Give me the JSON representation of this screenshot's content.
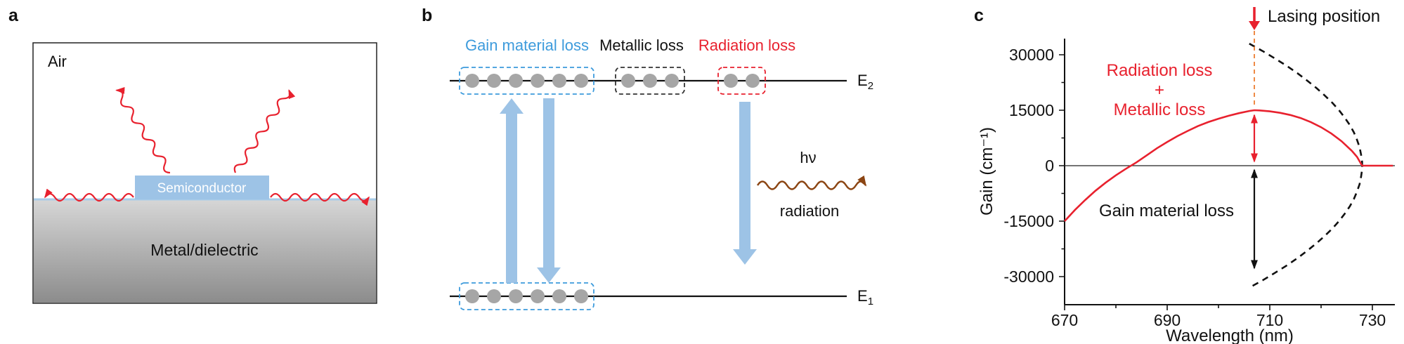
{
  "figure": {
    "panel_a": {
      "label": "a",
      "air_label": "Air",
      "semiconductor_label": "Semiconductor",
      "metal_label": "Metal/dielectric"
    },
    "panel_b": {
      "label": "b",
      "gain_material_loss_label": "Gain material loss",
      "metallic_loss_label": "Metallic loss",
      "radiation_loss_label": "Radiation loss",
      "level_base": "E",
      "upper_level_sub": "2",
      "lower_level_sub": "1",
      "photon_label": "hν",
      "radiation_label": "radiation"
    },
    "panel_c": {
      "label": "c",
      "lasing_position_label": "Lasing position",
      "radiation_loss_line": "Radiation loss",
      "plus": "+",
      "metallic_loss_line": "Metallic loss",
      "gain_material_loss_label": "Gain material loss",
      "ylabel": "Gain (cm⁻¹)",
      "xlabel": "Wavelength (nm)",
      "yticks": [
        "30000",
        "15000",
        "0",
        "-15000",
        "-30000"
      ],
      "xticks": [
        "670",
        "690",
        "710",
        "730"
      ]
    }
  },
  "colors": {
    "red": "#E8212E",
    "light_blue_arrow": "#9DC3E6",
    "label_blue": "#3D9BDC",
    "electron_gray": "#A6A6A6",
    "photon_brown": "#8B4513",
    "lasing_guide_orange": "#ED7D31",
    "metal_gradient_top": "#D6D6D6",
    "metal_gradient_bottom": "#8C8C8C"
  },
  "chart_data": {
    "type": "line",
    "title": "",
    "xlabel": "Wavelength (nm)",
    "ylabel": "Gain (cm⁻¹)",
    "xlim": [
      670,
      735
    ],
    "ylim": [
      -34000,
      34000
    ],
    "xticks": [
      670,
      690,
      710,
      730
    ],
    "yticks": [
      -30000,
      -15000,
      0,
      15000,
      30000
    ],
    "grid": false,
    "legend": "none",
    "series": [
      {
        "name": "cavity loss boundary (black dashed)",
        "style": "dashed",
        "color": "#111111",
        "points": [
          [
            706.0,
            33000
          ],
          [
            708.6,
            31000
          ],
          [
            711.0,
            29000
          ],
          [
            713.3,
            27000
          ],
          [
            715.4,
            25000
          ],
          [
            717.3,
            23000
          ],
          [
            719.1,
            21000
          ],
          [
            720.7,
            19000
          ],
          [
            722.2,
            17000
          ],
          [
            723.5,
            15000
          ],
          [
            724.6,
            13000
          ],
          [
            725.6,
            11000
          ],
          [
            726.4,
            9000
          ],
          [
            727.0,
            7000
          ],
          [
            727.5,
            5000
          ],
          [
            727.8,
            3000
          ],
          [
            728.0,
            1000
          ],
          [
            728.0,
            -1000
          ],
          [
            727.8,
            -3000
          ],
          [
            727.5,
            -5000
          ],
          [
            727.0,
            -7000
          ],
          [
            726.4,
            -9000
          ],
          [
            725.6,
            -11000
          ],
          [
            724.6,
            -13000
          ],
          [
            723.5,
            -15000
          ],
          [
            722.2,
            -17000
          ],
          [
            720.7,
            -19000
          ],
          [
            719.1,
            -21000
          ],
          [
            717.3,
            -23000
          ],
          [
            715.4,
            -25000
          ],
          [
            713.3,
            -27000
          ],
          [
            711.0,
            -29000
          ],
          [
            708.6,
            -31000
          ],
          [
            706.0,
            -33000
          ]
        ]
      },
      {
        "name": "material gain (red solid)",
        "style": "solid",
        "color": "#E8212E",
        "points": [
          [
            670,
            -15000
          ],
          [
            672,
            -12000
          ],
          [
            674,
            -9300
          ],
          [
            676,
            -6800
          ],
          [
            678,
            -4600
          ],
          [
            680,
            -2600
          ],
          [
            682,
            -800
          ],
          [
            684,
            900
          ],
          [
            686,
            2800
          ],
          [
            688,
            4700
          ],
          [
            690,
            6400
          ],
          [
            692,
            8000
          ],
          [
            694,
            9400
          ],
          [
            696,
            10700
          ],
          [
            698,
            11800
          ],
          [
            700,
            12700
          ],
          [
            702,
            13500
          ],
          [
            704,
            14200
          ],
          [
            706,
            14800
          ],
          [
            707,
            15000
          ],
          [
            708,
            14950
          ],
          [
            710,
            14700
          ],
          [
            712,
            14300
          ],
          [
            714,
            13700
          ],
          [
            716,
            12900
          ],
          [
            718,
            11800
          ],
          [
            720,
            10400
          ],
          [
            722,
            8700
          ],
          [
            724,
            6600
          ],
          [
            726,
            4000
          ],
          [
            727,
            2400
          ],
          [
            728,
            0
          ],
          [
            730,
            0
          ],
          [
            734,
            0
          ]
        ]
      }
    ],
    "annotations": {
      "lasing_position_nm": 707,
      "radiation_plus_metallic_loss_span": [
        0,
        15000
      ],
      "gain_material_loss_span": [
        -28000,
        0
      ]
    }
  }
}
